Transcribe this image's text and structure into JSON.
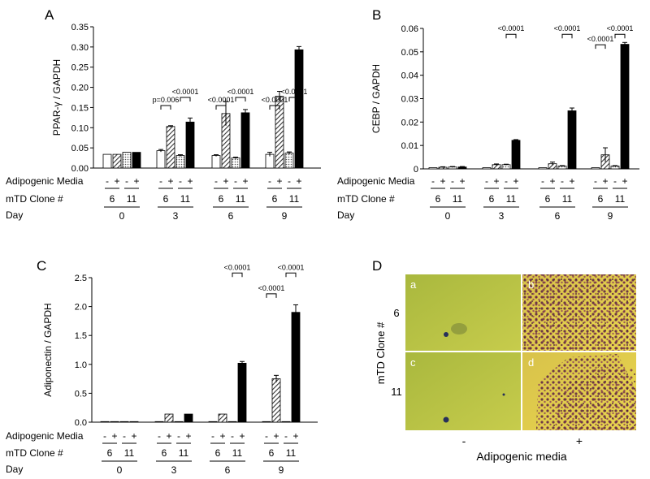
{
  "panels": {
    "A": "A",
    "B": "B",
    "C": "C",
    "D": "D"
  },
  "row_labels": {
    "media": "Adipogenic Media",
    "clone": "mTD Clone #",
    "day": "Day"
  },
  "sign_minus": "-",
  "sign_plus": "+",
  "clone_values": [
    "6",
    "11"
  ],
  "days": [
    "0",
    "3",
    "6",
    "9"
  ],
  "bar_styles": [
    "open",
    "hatched",
    "dotted",
    "solid"
  ],
  "chart_data": [
    {
      "id": "A",
      "type": "bar",
      "title": "",
      "xlabel": "",
      "ylabel": "PPAR-γ / GAPDH",
      "ylim": [
        0,
        0.35
      ],
      "yticks": [
        "0.00",
        "0.05",
        "0.10",
        "0.15",
        "0.20",
        "0.25",
        "0.30",
        "0.35"
      ],
      "categories": [
        "0",
        "3",
        "6",
        "9"
      ],
      "series": [
        {
          "name": "Clone 6 -",
          "values": [
            0.034,
            0.043,
            0.031,
            0.034
          ],
          "errors": [
            0,
            0.003,
            0.002,
            0.005
          ]
        },
        {
          "name": "Clone 6 +",
          "values": [
            0.034,
            0.103,
            0.135,
            0.178
          ],
          "errors": [
            0,
            0.002,
            0.03,
            0.012
          ]
        },
        {
          "name": "Clone 11 -",
          "values": [
            0.039,
            0.031,
            0.025,
            0.037
          ],
          "errors": [
            0,
            0.002,
            0.002,
            0.003
          ]
        },
        {
          "name": "Clone 11 +",
          "values": [
            0.039,
            0.114,
            0.137,
            0.293
          ],
          "errors": [
            0,
            0.01,
            0.008,
            0.008
          ]
        }
      ],
      "annotations": [
        {
          "text": "p=0.006",
          "day": 1,
          "from": 0,
          "to": 1,
          "level": 0.155
        },
        {
          "text": "<0.0001",
          "day": 1,
          "from": 2,
          "to": 3,
          "level": 0.175
        },
        {
          "text": "<0.0001",
          "day": 2,
          "from": 0,
          "to": 1,
          "level": 0.155
        },
        {
          "text": "<0.0001",
          "day": 2,
          "from": 2,
          "to": 3,
          "level": 0.175
        },
        {
          "text": "<0.0001",
          "day": 3,
          "from": 0,
          "to": 1,
          "level": 0.155
        },
        {
          "text": "<0.0001",
          "day": 3,
          "from": 2,
          "to": 3,
          "level": 0.175
        }
      ]
    },
    {
      "id": "B",
      "type": "bar",
      "title": "",
      "xlabel": "",
      "ylabel": "CEBP / GAPDH",
      "ylim": [
        0,
        0.06
      ],
      "yticks": [
        "0",
        "0.01",
        "0.02",
        "0.03",
        "0.04",
        "0.05",
        "0.06"
      ],
      "categories": [
        "0",
        "3",
        "6",
        "9"
      ],
      "series": [
        {
          "name": "Clone 6 -",
          "values": [
            0.0005,
            0.0005,
            0.0005,
            0.0005
          ],
          "errors": [
            0,
            0,
            0,
            0
          ]
        },
        {
          "name": "Clone 6 +",
          "values": [
            0.0007,
            0.0018,
            0.0022,
            0.006
          ],
          "errors": [
            0.0002,
            0.0003,
            0.0007,
            0.003
          ]
        },
        {
          "name": "Clone 11 -",
          "values": [
            0.0008,
            0.0018,
            0.0012,
            0.0012
          ],
          "errors": [
            0.0002,
            0.0002,
            0.0002,
            0.0002
          ]
        },
        {
          "name": "Clone 11 +",
          "values": [
            0.0008,
            0.0122,
            0.0248,
            0.0532
          ],
          "errors": [
            0.0002,
            0.0003,
            0.0012,
            0.0008
          ]
        }
      ],
      "annotations": [
        {
          "text": "<0.0001",
          "day": 1,
          "from": 2,
          "to": 3,
          "level": 0.0575
        },
        {
          "text": "<0.0001",
          "day": 2,
          "from": 2,
          "to": 3,
          "level": 0.0575
        },
        {
          "text": "<0.0001",
          "day": 3,
          "from": 0,
          "to": 1,
          "level": 0.053
        },
        {
          "text": "<0.0001",
          "day": 3,
          "from": 2,
          "to": 3,
          "level": 0.0575
        }
      ]
    },
    {
      "id": "C",
      "type": "bar",
      "title": "",
      "xlabel": "",
      "ylabel": "Adiponectin / GAPDH",
      "ylim": [
        0,
        2.5
      ],
      "yticks": [
        "0.0",
        "0.5",
        "1.0",
        "1.5",
        "2.0",
        "2.5"
      ],
      "categories": [
        "0",
        "3",
        "6",
        "9"
      ],
      "series": [
        {
          "name": "Clone 6 -",
          "values": [
            0.01,
            0.01,
            0.01,
            0.01
          ],
          "errors": [
            0,
            0,
            0,
            0
          ]
        },
        {
          "name": "Clone 6 +",
          "values": [
            0.01,
            0.14,
            0.14,
            0.75
          ],
          "errors": [
            0,
            0,
            0,
            0.06
          ]
        },
        {
          "name": "Clone 11 -",
          "values": [
            0.01,
            0.01,
            0.01,
            0.01
          ],
          "errors": [
            0,
            0,
            0,
            0
          ]
        },
        {
          "name": "Clone 11 +",
          "values": [
            0.01,
            0.14,
            1.02,
            1.9
          ],
          "errors": [
            0,
            0,
            0.03,
            0.13
          ]
        }
      ],
      "annotations": [
        {
          "text": "<0.0001",
          "day": 2,
          "from": 2,
          "to": 3,
          "level": 2.58
        },
        {
          "text": "<0.0001",
          "day": 3,
          "from": 0,
          "to": 1,
          "level": 2.22
        },
        {
          "text": "<0.0001",
          "day": 3,
          "from": 2,
          "to": 3,
          "level": 2.58
        }
      ]
    }
  ],
  "panel_d": {
    "row_title": "mTD Clone #",
    "rows": [
      "6",
      "11"
    ],
    "xlabel": "Adipogenic media",
    "cols": [
      "-",
      "+"
    ],
    "cells": [
      "a",
      "b",
      "c",
      "d"
    ]
  }
}
